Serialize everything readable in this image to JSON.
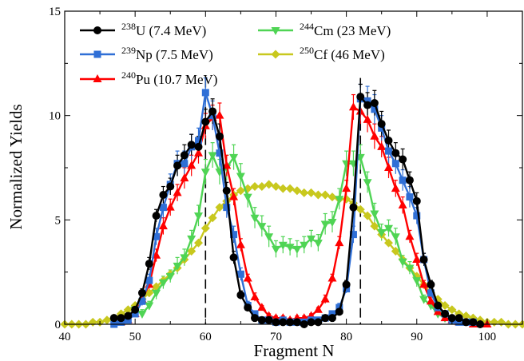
{
  "chart_data": {
    "type": "line",
    "xlabel": "Fragment N",
    "ylabel": "Normalized Yields",
    "xlim": [
      40,
      105
    ],
    "ylim": [
      0,
      15
    ],
    "xticks": [
      40,
      50,
      60,
      70,
      80,
      90,
      100
    ],
    "xtick_labels": [
      "40",
      "50",
      "60",
      "70",
      "80",
      "90",
      "100"
    ],
    "yticks": [
      0,
      5,
      10,
      15
    ],
    "ytick_labels": [
      "0",
      "5",
      "10",
      "15"
    ],
    "grid": false,
    "legend_position": "top-left",
    "reference_lines": [
      60,
      82
    ],
    "series": [
      {
        "name_sup": "238",
        "name": "U (7.4 MeV)",
        "color": "#000000",
        "marker": "circle",
        "x": [
          47,
          48,
          49,
          50,
          51,
          52,
          53,
          54,
          55,
          56,
          57,
          58,
          59,
          60,
          61,
          62,
          63,
          64,
          65,
          66,
          67,
          68,
          69,
          70,
          71,
          72,
          73,
          74,
          75,
          76,
          77,
          78,
          79,
          80,
          81,
          82,
          83,
          84,
          85,
          86,
          87,
          88,
          89,
          90,
          91,
          92,
          93,
          94,
          95,
          96,
          97,
          98,
          99
        ],
        "y": [
          0.3,
          0.3,
          0.4,
          0.7,
          1.5,
          2.9,
          5.2,
          6.2,
          6.6,
          7.6,
          8.1,
          8.6,
          8.5,
          9.7,
          10.2,
          9.0,
          6.4,
          3.2,
          1.4,
          0.8,
          0.3,
          0.2,
          0.2,
          0.1,
          0.1,
          0.1,
          0.1,
          0.0,
          0.1,
          0.1,
          0.3,
          0.3,
          0.6,
          1.9,
          5.6,
          10.9,
          10.5,
          10.6,
          9.6,
          8.8,
          8.2,
          7.9,
          6.9,
          5.9,
          3.1,
          1.9,
          0.9,
          0.5,
          0.3,
          0.3,
          0.1,
          0.1,
          0.0
        ],
        "err": [
          0.1,
          0.1,
          0.1,
          0.2,
          0.2,
          0.3,
          0.3,
          0.4,
          0.4,
          0.5,
          0.5,
          0.5,
          0.5,
          0.6,
          0.6,
          0.6,
          0.4,
          0.3,
          0.2,
          0.1,
          0.1,
          0.1,
          0.1,
          0.1,
          0.1,
          0.1,
          0.1,
          0.0,
          0.1,
          0.1,
          0.1,
          0.1,
          0.1,
          0.2,
          0.4,
          0.6,
          0.6,
          0.6,
          0.6,
          0.5,
          0.5,
          0.5,
          0.4,
          0.4,
          0.3,
          0.2,
          0.1,
          0.1,
          0.1,
          0.1,
          0.1,
          0.1,
          0.0
        ]
      },
      {
        "name_sup": "239",
        "name": "Np (7.5 MeV)",
        "color": "#2f6fd6",
        "marker": "square",
        "x": [
          47,
          48,
          49,
          50,
          51,
          52,
          53,
          54,
          55,
          56,
          57,
          58,
          59,
          60,
          61,
          62,
          63,
          64,
          65,
          66,
          67,
          68,
          69,
          70,
          71,
          72,
          73,
          74,
          75,
          76,
          77,
          78,
          79,
          80,
          81,
          82,
          83,
          84,
          85,
          86,
          87,
          88,
          89,
          90,
          91,
          92,
          93,
          94,
          95,
          96,
          97,
          98
        ],
        "y": [
          0.0,
          0.1,
          0.2,
          0.5,
          1.1,
          2.1,
          4.2,
          5.6,
          6.7,
          7.7,
          7.7,
          8.5,
          8.8,
          11.1,
          10.0,
          8.2,
          5.6,
          4.3,
          2.4,
          0.9,
          0.5,
          0.2,
          0.2,
          0.1,
          0.2,
          0.1,
          0.1,
          0.1,
          0.2,
          0.2,
          0.3,
          0.5,
          0.8,
          1.7,
          4.3,
          10.8,
          10.7,
          10.3,
          9.4,
          8.3,
          7.7,
          6.9,
          6.1,
          5.2,
          3.1,
          1.5,
          0.8,
          0.5,
          0.2,
          0.1,
          0.1,
          0.1
        ],
        "err": [
          0.0,
          0.1,
          0.1,
          0.1,
          0.2,
          0.3,
          0.4,
          0.5,
          0.5,
          0.6,
          0.6,
          0.6,
          0.6,
          0.7,
          0.7,
          0.6,
          0.5,
          0.4,
          0.3,
          0.2,
          0.1,
          0.1,
          0.1,
          0.1,
          0.1,
          0.1,
          0.1,
          0.1,
          0.1,
          0.1,
          0.1,
          0.1,
          0.2,
          0.2,
          0.4,
          0.7,
          0.7,
          0.7,
          0.6,
          0.6,
          0.5,
          0.5,
          0.5,
          0.4,
          0.3,
          0.2,
          0.2,
          0.1,
          0.1,
          0.1,
          0.1,
          0.1
        ]
      },
      {
        "name_sup": "240",
        "name": "Pu (10.7 MeV)",
        "color": "#ff0000",
        "marker": "triangle-up",
        "x": [
          48,
          49,
          50,
          51,
          52,
          53,
          54,
          55,
          56,
          57,
          58,
          59,
          60,
          61,
          62,
          63,
          64,
          65,
          66,
          67,
          68,
          69,
          70,
          71,
          72,
          73,
          74,
          75,
          76,
          77,
          78,
          79,
          80,
          81,
          82,
          83,
          84,
          85,
          86,
          87,
          88,
          89,
          90,
          91,
          92,
          93,
          94,
          95,
          96,
          97,
          98,
          99,
          100
        ],
        "y": [
          0.1,
          0.2,
          0.5,
          1.2,
          1.9,
          3.3,
          4.7,
          5.6,
          6.3,
          7.0,
          7.6,
          8.2,
          9.5,
          9.9,
          10.0,
          7.6,
          6.1,
          3.8,
          2.2,
          1.3,
          0.8,
          0.4,
          0.3,
          0.3,
          0.2,
          0.3,
          0.3,
          0.4,
          0.7,
          1.2,
          2.2,
          3.9,
          6.5,
          10.4,
          10.2,
          9.8,
          9.0,
          8.5,
          7.5,
          6.5,
          5.7,
          4.2,
          3.1,
          1.9,
          1.1,
          0.6,
          0.3,
          0.2,
          0.1,
          0.1,
          0.0,
          0.0,
          0.0
        ],
        "err": [
          0.1,
          0.1,
          0.1,
          0.2,
          0.2,
          0.3,
          0.4,
          0.4,
          0.4,
          0.5,
          0.5,
          0.5,
          0.6,
          0.6,
          0.6,
          0.5,
          0.4,
          0.3,
          0.2,
          0.2,
          0.1,
          0.1,
          0.1,
          0.1,
          0.1,
          0.1,
          0.1,
          0.1,
          0.1,
          0.2,
          0.2,
          0.3,
          0.4,
          0.6,
          0.6,
          0.6,
          0.6,
          0.5,
          0.5,
          0.4,
          0.4,
          0.3,
          0.3,
          0.2,
          0.2,
          0.1,
          0.1,
          0.1,
          0.1,
          0.1,
          0.0,
          0.0,
          0.0
        ]
      },
      {
        "name_sup": "244",
        "name": "Cm (23 MeV)",
        "color": "#4fd454",
        "marker": "triangle-down",
        "x": [
          50,
          51,
          52,
          53,
          54,
          55,
          56,
          57,
          58,
          59,
          60,
          61,
          62,
          63,
          64,
          65,
          66,
          67,
          68,
          69,
          70,
          71,
          72,
          73,
          74,
          75,
          76,
          77,
          78,
          79,
          80,
          81,
          82,
          83,
          84,
          85,
          86,
          87,
          88,
          89,
          90,
          91,
          92,
          93,
          94,
          95
        ],
        "y": [
          0.7,
          0.5,
          0.9,
          1.5,
          2.0,
          2.3,
          2.8,
          3.2,
          4.1,
          5.2,
          7.3,
          8.1,
          7.3,
          7.5,
          8.0,
          7.1,
          6.1,
          5.1,
          4.7,
          4.2,
          3.6,
          3.8,
          3.7,
          3.6,
          3.8,
          4.1,
          3.9,
          4.8,
          4.9,
          6.0,
          7.7,
          7.7,
          8.0,
          6.8,
          5.3,
          4.4,
          4.6,
          4.2,
          3.0,
          2.7,
          2.1,
          1.2,
          0.9,
          0.5,
          0.3,
          0.2
        ],
        "err": [
          0.2,
          0.2,
          0.2,
          0.3,
          0.3,
          0.3,
          0.4,
          0.4,
          0.4,
          0.5,
          0.6,
          0.6,
          0.6,
          0.6,
          0.6,
          0.6,
          0.5,
          0.5,
          0.5,
          0.5,
          0.4,
          0.4,
          0.4,
          0.4,
          0.4,
          0.4,
          0.4,
          0.5,
          0.5,
          0.5,
          0.6,
          0.6,
          0.6,
          0.5,
          0.5,
          0.4,
          0.4,
          0.4,
          0.3,
          0.3,
          0.3,
          0.2,
          0.2,
          0.1,
          0.1,
          0.1
        ]
      },
      {
        "name_sup": "250",
        "name": "Cf (46 MeV)",
        "color": "#c8c81e",
        "marker": "diamond",
        "x": [
          40,
          41,
          42,
          43,
          44,
          45,
          46,
          47,
          48,
          49,
          50,
          51,
          52,
          53,
          54,
          55,
          56,
          57,
          58,
          59,
          60,
          61,
          62,
          63,
          64,
          65,
          66,
          67,
          68,
          69,
          70,
          71,
          72,
          73,
          74,
          75,
          76,
          77,
          78,
          79,
          80,
          81,
          82,
          83,
          84,
          85,
          86,
          87,
          88,
          89,
          90,
          91,
          92,
          93,
          94,
          95,
          96,
          97,
          98,
          99,
          100,
          101,
          102,
          103,
          104,
          105
        ],
        "y": [
          0.0,
          0.0,
          0.0,
          0.0,
          0.1,
          0.1,
          0.2,
          0.3,
          0.5,
          0.7,
          0.9,
          1.2,
          1.5,
          1.8,
          2.1,
          2.4,
          2.7,
          3.1,
          3.5,
          3.9,
          4.6,
          5.1,
          5.6,
          5.9,
          6.2,
          6.4,
          6.5,
          6.6,
          6.6,
          6.7,
          6.6,
          6.5,
          6.5,
          6.4,
          6.3,
          6.3,
          6.2,
          6.2,
          6.1,
          6.0,
          6.0,
          5.8,
          5.5,
          5.2,
          4.7,
          4.3,
          3.9,
          3.5,
          3.1,
          2.7,
          2.3,
          1.9,
          1.5,
          1.2,
          0.9,
          0.7,
          0.5,
          0.4,
          0.3,
          0.2,
          0.1,
          0.1,
          0.1,
          0.0,
          0.0,
          0.0
        ],
        "err": []
      }
    ]
  }
}
